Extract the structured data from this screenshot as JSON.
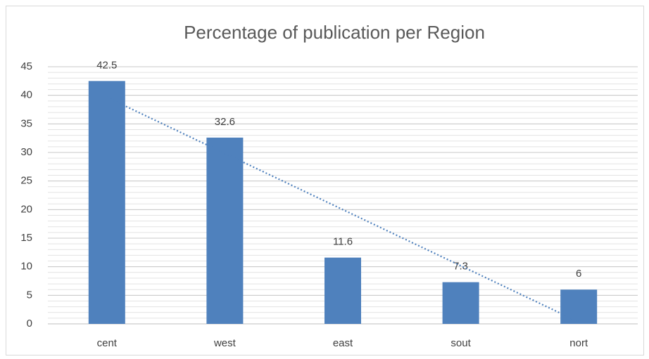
{
  "chart_data": {
    "type": "bar",
    "title": "Percentage of publication per Region",
    "categories": [
      "cent",
      "west",
      "east",
      "sout",
      "nort"
    ],
    "values": [
      42.5,
      32.6,
      11.6,
      7.3,
      6
    ],
    "color": "#4f81bd",
    "ylim": [
      0,
      45
    ],
    "yticks": [
      0,
      5,
      10,
      15,
      20,
      25,
      30,
      35,
      40,
      45
    ],
    "grid": true,
    "minor_grid": true,
    "trendline": "linear",
    "data_labels": true
  }
}
